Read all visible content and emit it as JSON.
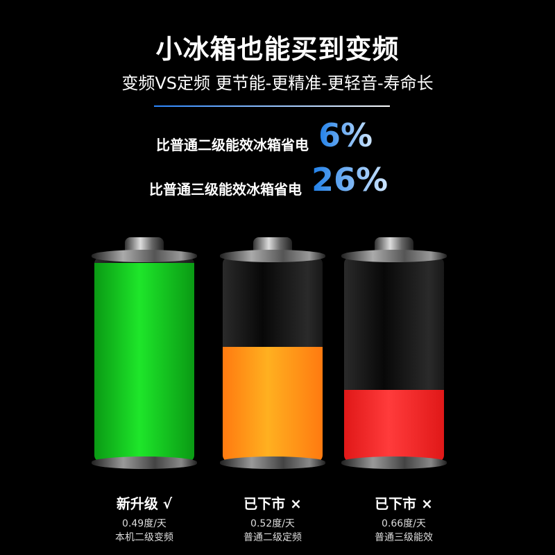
{
  "header": {
    "title": "小冰箱也能买到变频",
    "subtitle": "变频VS定频 更节能-更精准-更轻音-寿命长"
  },
  "comparisons": [
    {
      "text": "比普通二级能效冰箱省电",
      "value": "6%"
    },
    {
      "text": "比普通三级能效冰箱省电",
      "value": "26%"
    }
  ],
  "batteries": [
    {
      "status": "新升级 √",
      "usage": "0.49度/天",
      "desc": "本机二级变频",
      "fill_percent": 97,
      "color_top": "#1ee62a",
      "color_bottom": "#0a9a14"
    },
    {
      "status": "已下市 ×",
      "usage": "0.52度/天",
      "desc": "普通二级定频",
      "fill_percent": 56,
      "color_top": "#ffb020",
      "color_bottom": "#ff7a10"
    },
    {
      "status": "已下市 ×",
      "usage": "0.66度/天",
      "desc": "普通三级能效",
      "fill_percent": 35,
      "color_top": "#ff3b3b",
      "color_bottom": "#e01818"
    }
  ],
  "colors": {
    "accent": "#1f7fe8",
    "background": "#000000"
  }
}
